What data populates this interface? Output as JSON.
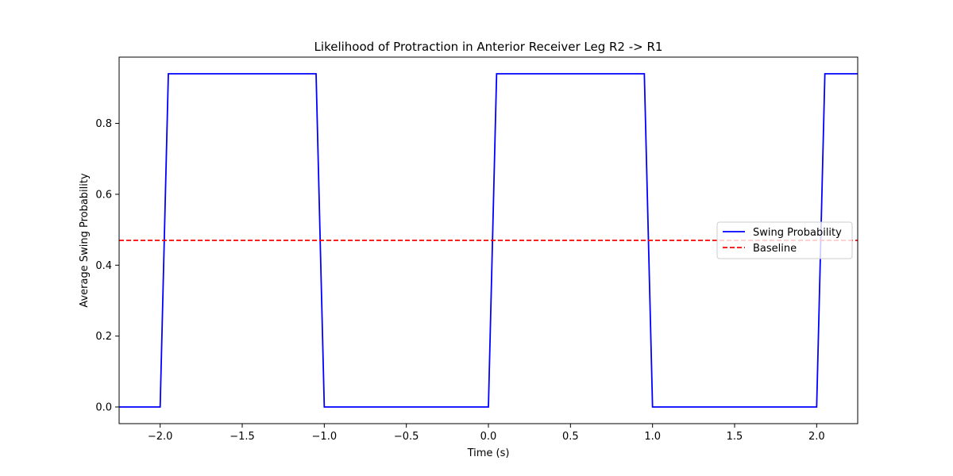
{
  "chart_data": {
    "type": "line",
    "title": "Likelihood of Protraction in Anterior Receiver Leg R2 -> R1",
    "xlabel": "Time (s)",
    "ylabel": "Average Swing Probability",
    "xlim": [
      -2.25,
      2.25
    ],
    "ylim": [
      -0.047,
      0.987
    ],
    "xticks": [
      -2.0,
      -1.5,
      -1.0,
      -0.5,
      0.0,
      0.5,
      1.0,
      1.5,
      2.0
    ],
    "xtick_labels": [
      "−2.0",
      "−1.5",
      "−1.0",
      "−0.5",
      "0.0",
      "0.5",
      "1.0",
      "1.5",
      "2.0"
    ],
    "yticks": [
      0.0,
      0.2,
      0.4,
      0.6,
      0.8
    ],
    "ytick_labels": [
      "0.0",
      "0.2",
      "0.4",
      "0.6",
      "0.8"
    ],
    "grid": false,
    "legend_position": "center-right",
    "series": [
      {
        "name": "Swing Probability",
        "color": "#0000ff",
        "style": "solid",
        "x": [
          -2.25,
          -2.0,
          -1.95,
          -1.05,
          -1.0,
          0.0,
          0.05,
          0.95,
          1.0,
          2.0,
          2.05,
          2.25
        ],
        "y": [
          0.0,
          0.0,
          0.94,
          0.94,
          0.0,
          0.0,
          0.94,
          0.94,
          0.0,
          0.0,
          0.94,
          0.94
        ]
      },
      {
        "name": "Baseline",
        "color": "#ff0000",
        "style": "dashed",
        "x": [
          -2.25,
          2.25
        ],
        "y": [
          0.47,
          0.47
        ]
      }
    ]
  }
}
